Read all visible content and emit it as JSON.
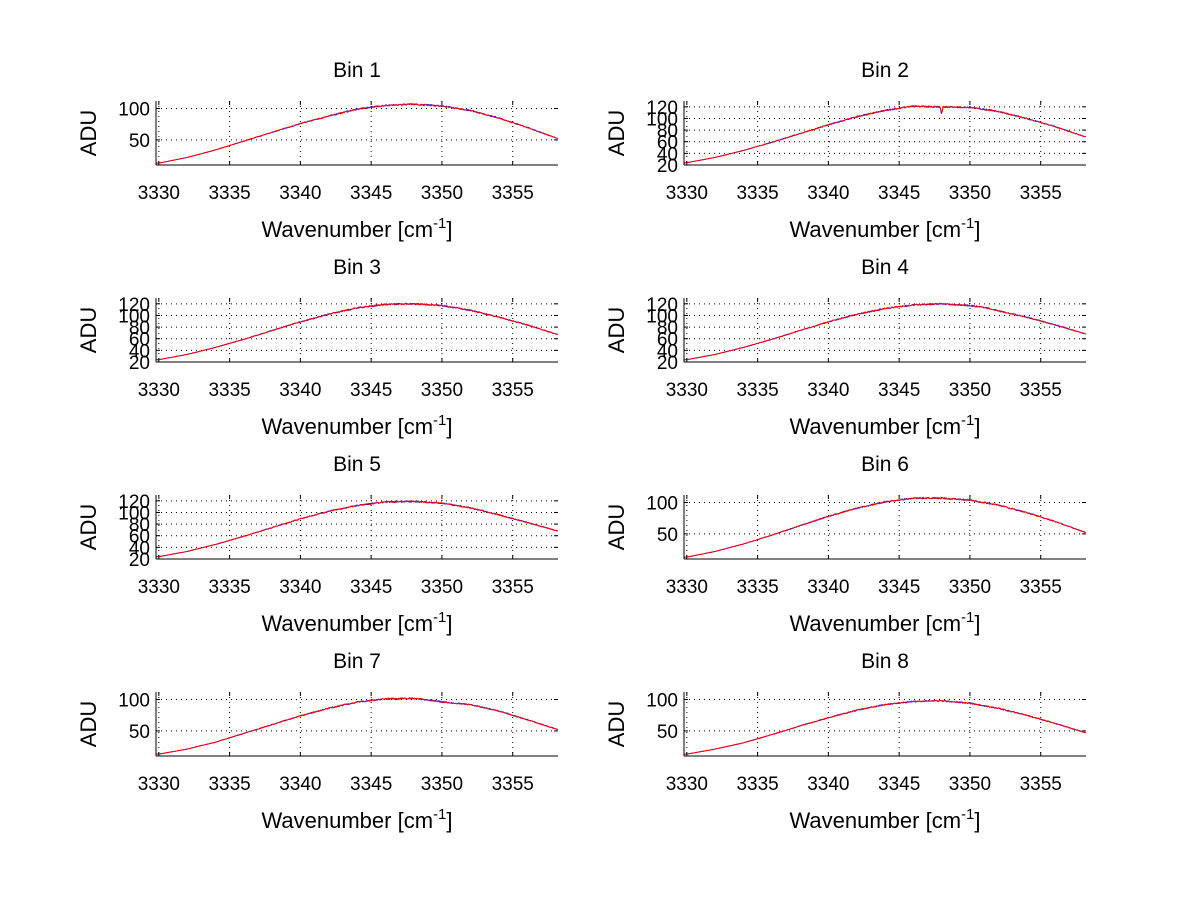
{
  "chart_data": [
    {
      "type": "line",
      "title": "Bin 1",
      "xlabel": "Wavenumber [cm",
      "xlabel_sup": "-1",
      "xlabel_end": "]",
      "ylabel": "ADU",
      "xlim": [
        3329.8,
        3358.2
      ],
      "ylim": [
        10,
        112
      ],
      "xticks": [
        3330,
        3335,
        3340,
        3345,
        3350,
        3355
      ],
      "yticks": [
        50,
        100
      ],
      "grid": true,
      "series": [
        {
          "color": "#0000ff",
          "x": [
            3330,
            3332,
            3334,
            3336,
            3338,
            3340,
            3342,
            3344,
            3346,
            3348,
            3350,
            3352,
            3354,
            3356,
            3358.2
          ],
          "y": [
            13,
            22,
            34,
            48,
            62,
            76,
            88,
            99,
            105,
            107,
            104,
            97,
            85,
            70,
            52
          ]
        },
        {
          "color": "#ff0000",
          "x": [
            3330,
            3332,
            3334,
            3336,
            3338,
            3340,
            3342,
            3344,
            3346,
            3348,
            3350,
            3352,
            3354,
            3356,
            3358.2
          ],
          "y": [
            13,
            22,
            34,
            48,
            62,
            76,
            88,
            99,
            105,
            107,
            104,
            97,
            85,
            70,
            52
          ]
        }
      ]
    },
    {
      "type": "line",
      "title": "Bin 2",
      "xlabel": "Wavenumber [cm",
      "xlabel_sup": "-1",
      "xlabel_end": "]",
      "ylabel": "ADU",
      "xlim": [
        3329.8,
        3358.2
      ],
      "ylim": [
        20,
        130
      ],
      "xticks": [
        3330,
        3335,
        3340,
        3345,
        3350,
        3355
      ],
      "yticks": [
        20,
        40,
        60,
        80,
        100,
        120
      ],
      "grid": true,
      "series": [
        {
          "color": "#0000ff",
          "x": [
            3330,
            3332,
            3334,
            3336,
            3338,
            3340,
            3342,
            3344,
            3346,
            3347.9,
            3348,
            3348.1,
            3350,
            3352,
            3354,
            3356,
            3358.2
          ],
          "y": [
            24,
            33,
            45,
            59,
            74,
            89,
            103,
            114,
            121,
            120,
            107,
            120,
            119,
            112,
            100,
            86,
            68
          ]
        },
        {
          "color": "#ff0000",
          "x": [
            3330,
            3332,
            3334,
            3336,
            3338,
            3340,
            3342,
            3344,
            3346,
            3347.9,
            3348,
            3348.1,
            3350,
            3352,
            3354,
            3356,
            3358.2
          ],
          "y": [
            24,
            33,
            45,
            59,
            74,
            89,
            103,
            114,
            121,
            120,
            107,
            120,
            119,
            112,
            100,
            86,
            68
          ]
        }
      ]
    },
    {
      "type": "line",
      "title": "Bin 3",
      "xlabel": "Wavenumber [cm",
      "xlabel_sup": "-1",
      "xlabel_end": "]",
      "ylabel": "ADU",
      "xlim": [
        3329.8,
        3358.2
      ],
      "ylim": [
        20,
        130
      ],
      "xticks": [
        3330,
        3335,
        3340,
        3345,
        3350,
        3355
      ],
      "yticks": [
        20,
        40,
        60,
        80,
        100,
        120
      ],
      "grid": true,
      "series": [
        {
          "color": "#0000ff",
          "x": [
            3330,
            3332,
            3334,
            3336,
            3338,
            3340,
            3342,
            3344,
            3346,
            3348,
            3350,
            3352,
            3354,
            3356,
            3358.2
          ],
          "y": [
            24,
            33,
            45,
            59,
            74,
            89,
            102,
            113,
            119,
            120,
            117,
            109,
            97,
            84,
            67
          ]
        },
        {
          "color": "#ff0000",
          "x": [
            3330,
            3332,
            3334,
            3336,
            3338,
            3340,
            3342,
            3344,
            3346,
            3348,
            3350,
            3352,
            3354,
            3356,
            3358.2
          ],
          "y": [
            24,
            33,
            45,
            59,
            74,
            89,
            102,
            113,
            119,
            120,
            117,
            109,
            97,
            84,
            67
          ]
        }
      ]
    },
    {
      "type": "line",
      "title": "Bin 4",
      "xlabel": "Wavenumber [cm",
      "xlabel_sup": "-1",
      "xlabel_end": "]",
      "ylabel": "ADU",
      "xlim": [
        3329.8,
        3358.2
      ],
      "ylim": [
        20,
        130
      ],
      "xticks": [
        3330,
        3335,
        3340,
        3345,
        3350,
        3355
      ],
      "yticks": [
        20,
        40,
        60,
        80,
        100,
        120
      ],
      "grid": true,
      "series": [
        {
          "color": "#0000ff",
          "x": [
            3330,
            3332,
            3334,
            3336,
            3338,
            3340,
            3342,
            3344,
            3346,
            3348,
            3350,
            3351,
            3352,
            3354,
            3356,
            3358.2
          ],
          "y": [
            24,
            33,
            45,
            59,
            74,
            89,
            102,
            112,
            118,
            120,
            117,
            114,
            108,
            97,
            84,
            68
          ]
        },
        {
          "color": "#ff0000",
          "x": [
            3330,
            3332,
            3334,
            3336,
            3338,
            3340,
            3342,
            3344,
            3346,
            3348,
            3350,
            3351,
            3352,
            3354,
            3356,
            3358.2
          ],
          "y": [
            24,
            33,
            45,
            59,
            74,
            89,
            102,
            112,
            118,
            120,
            117,
            114,
            108,
            97,
            84,
            68
          ]
        }
      ]
    },
    {
      "type": "line",
      "title": "Bin 5",
      "xlabel": "Wavenumber [cm",
      "xlabel_sup": "-1",
      "xlabel_end": "]",
      "ylabel": "ADU",
      "xlim": [
        3329.8,
        3358.2
      ],
      "ylim": [
        20,
        130
      ],
      "xticks": [
        3330,
        3335,
        3340,
        3345,
        3350,
        3355
      ],
      "yticks": [
        20,
        40,
        60,
        80,
        100,
        120
      ],
      "grid": true,
      "series": [
        {
          "color": "#0000ff",
          "x": [
            3330,
            3332,
            3334,
            3336,
            3338,
            3340,
            3342,
            3344,
            3346,
            3348,
            3350,
            3352,
            3354,
            3356,
            3358.2
          ],
          "y": [
            24,
            33,
            45,
            59,
            74,
            89,
            102,
            112,
            118,
            119,
            116,
            108,
            96,
            83,
            68
          ]
        },
        {
          "color": "#ff0000",
          "x": [
            3330,
            3332,
            3334,
            3336,
            3338,
            3340,
            3342,
            3344,
            3346,
            3348,
            3350,
            3352,
            3354,
            3356,
            3358.2
          ],
          "y": [
            24,
            33,
            45,
            59,
            74,
            89,
            102,
            112,
            118,
            119,
            116,
            108,
            96,
            83,
            68
          ]
        }
      ]
    },
    {
      "type": "line",
      "title": "Bin 6",
      "xlabel": "Wavenumber [cm",
      "xlabel_sup": "-1",
      "xlabel_end": "]",
      "ylabel": "ADU",
      "xlim": [
        3329.8,
        3358.2
      ],
      "ylim": [
        10,
        112
      ],
      "xticks": [
        3330,
        3335,
        3340,
        3345,
        3350,
        3355
      ],
      "yticks": [
        50,
        100
      ],
      "grid": true,
      "series": [
        {
          "color": "#0000ff",
          "x": [
            3330,
            3332,
            3334,
            3336,
            3338,
            3340,
            3342,
            3344,
            3346,
            3348,
            3350,
            3352,
            3354,
            3356,
            3358.2
          ],
          "y": [
            13,
            22,
            34,
            48,
            63,
            78,
            91,
            101,
            107,
            107,
            104,
            96,
            84,
            70,
            52
          ]
        },
        {
          "color": "#ff0000",
          "x": [
            3330,
            3332,
            3334,
            3336,
            3338,
            3340,
            3342,
            3344,
            3346,
            3348,
            3350,
            3352,
            3354,
            3356,
            3358.2
          ],
          "y": [
            13,
            22,
            34,
            48,
            63,
            78,
            91,
            101,
            107,
            107,
            104,
            96,
            84,
            70,
            52
          ]
        }
      ]
    },
    {
      "type": "line",
      "title": "Bin 7",
      "xlabel": "Wavenumber [cm",
      "xlabel_sup": "-1",
      "xlabel_end": "]",
      "ylabel": "ADU",
      "xlim": [
        3329.8,
        3358.2
      ],
      "ylim": [
        10,
        112
      ],
      "xticks": [
        3330,
        3335,
        3340,
        3345,
        3350,
        3355
      ],
      "yticks": [
        50,
        100
      ],
      "grid": true,
      "series": [
        {
          "color": "#0000ff",
          "x": [
            3330,
            3332,
            3334,
            3336,
            3338,
            3340,
            3342,
            3344,
            3346,
            3348,
            3349.5,
            3350,
            3352,
            3354,
            3356,
            3358.2
          ],
          "y": [
            13,
            21,
            32,
            46,
            60,
            74,
            86,
            96,
            101,
            102,
            98,
            96,
            92,
            82,
            68,
            52
          ]
        },
        {
          "color": "#ff0000",
          "x": [
            3330,
            3332,
            3334,
            3336,
            3338,
            3340,
            3342,
            3344,
            3346,
            3348,
            3349.5,
            3350,
            3352,
            3354,
            3356,
            3358.2
          ],
          "y": [
            13,
            21,
            32,
            46,
            60,
            74,
            86,
            96,
            101,
            102,
            98,
            96,
            92,
            82,
            68,
            52
          ]
        }
      ]
    },
    {
      "type": "line",
      "title": "Bin 8",
      "xlabel": "Wavenumber [cm",
      "xlabel_sup": "-1",
      "xlabel_end": "]",
      "ylabel": "ADU",
      "xlim": [
        3329.8,
        3358.2
      ],
      "ylim": [
        10,
        112
      ],
      "xticks": [
        3330,
        3335,
        3340,
        3345,
        3350,
        3355
      ],
      "yticks": [
        50,
        100
      ],
      "grid": true,
      "series": [
        {
          "color": "#0000ff",
          "x": [
            3330,
            3332,
            3334,
            3336,
            3338,
            3340,
            3342,
            3344,
            3346,
            3348,
            3350,
            3352,
            3354,
            3356,
            3358.2
          ],
          "y": [
            13,
            21,
            31,
            44,
            58,
            71,
            83,
            92,
            97,
            98,
            94,
            86,
            75,
            62,
            47
          ]
        },
        {
          "color": "#ff0000",
          "x": [
            3330,
            3332,
            3334,
            3336,
            3338,
            3340,
            3342,
            3344,
            3346,
            3348,
            3350,
            3352,
            3354,
            3356,
            3358.2
          ],
          "y": [
            13,
            21,
            31,
            44,
            58,
            71,
            83,
            92,
            97,
            98,
            94,
            86,
            75,
            62,
            47
          ]
        }
      ]
    }
  ]
}
